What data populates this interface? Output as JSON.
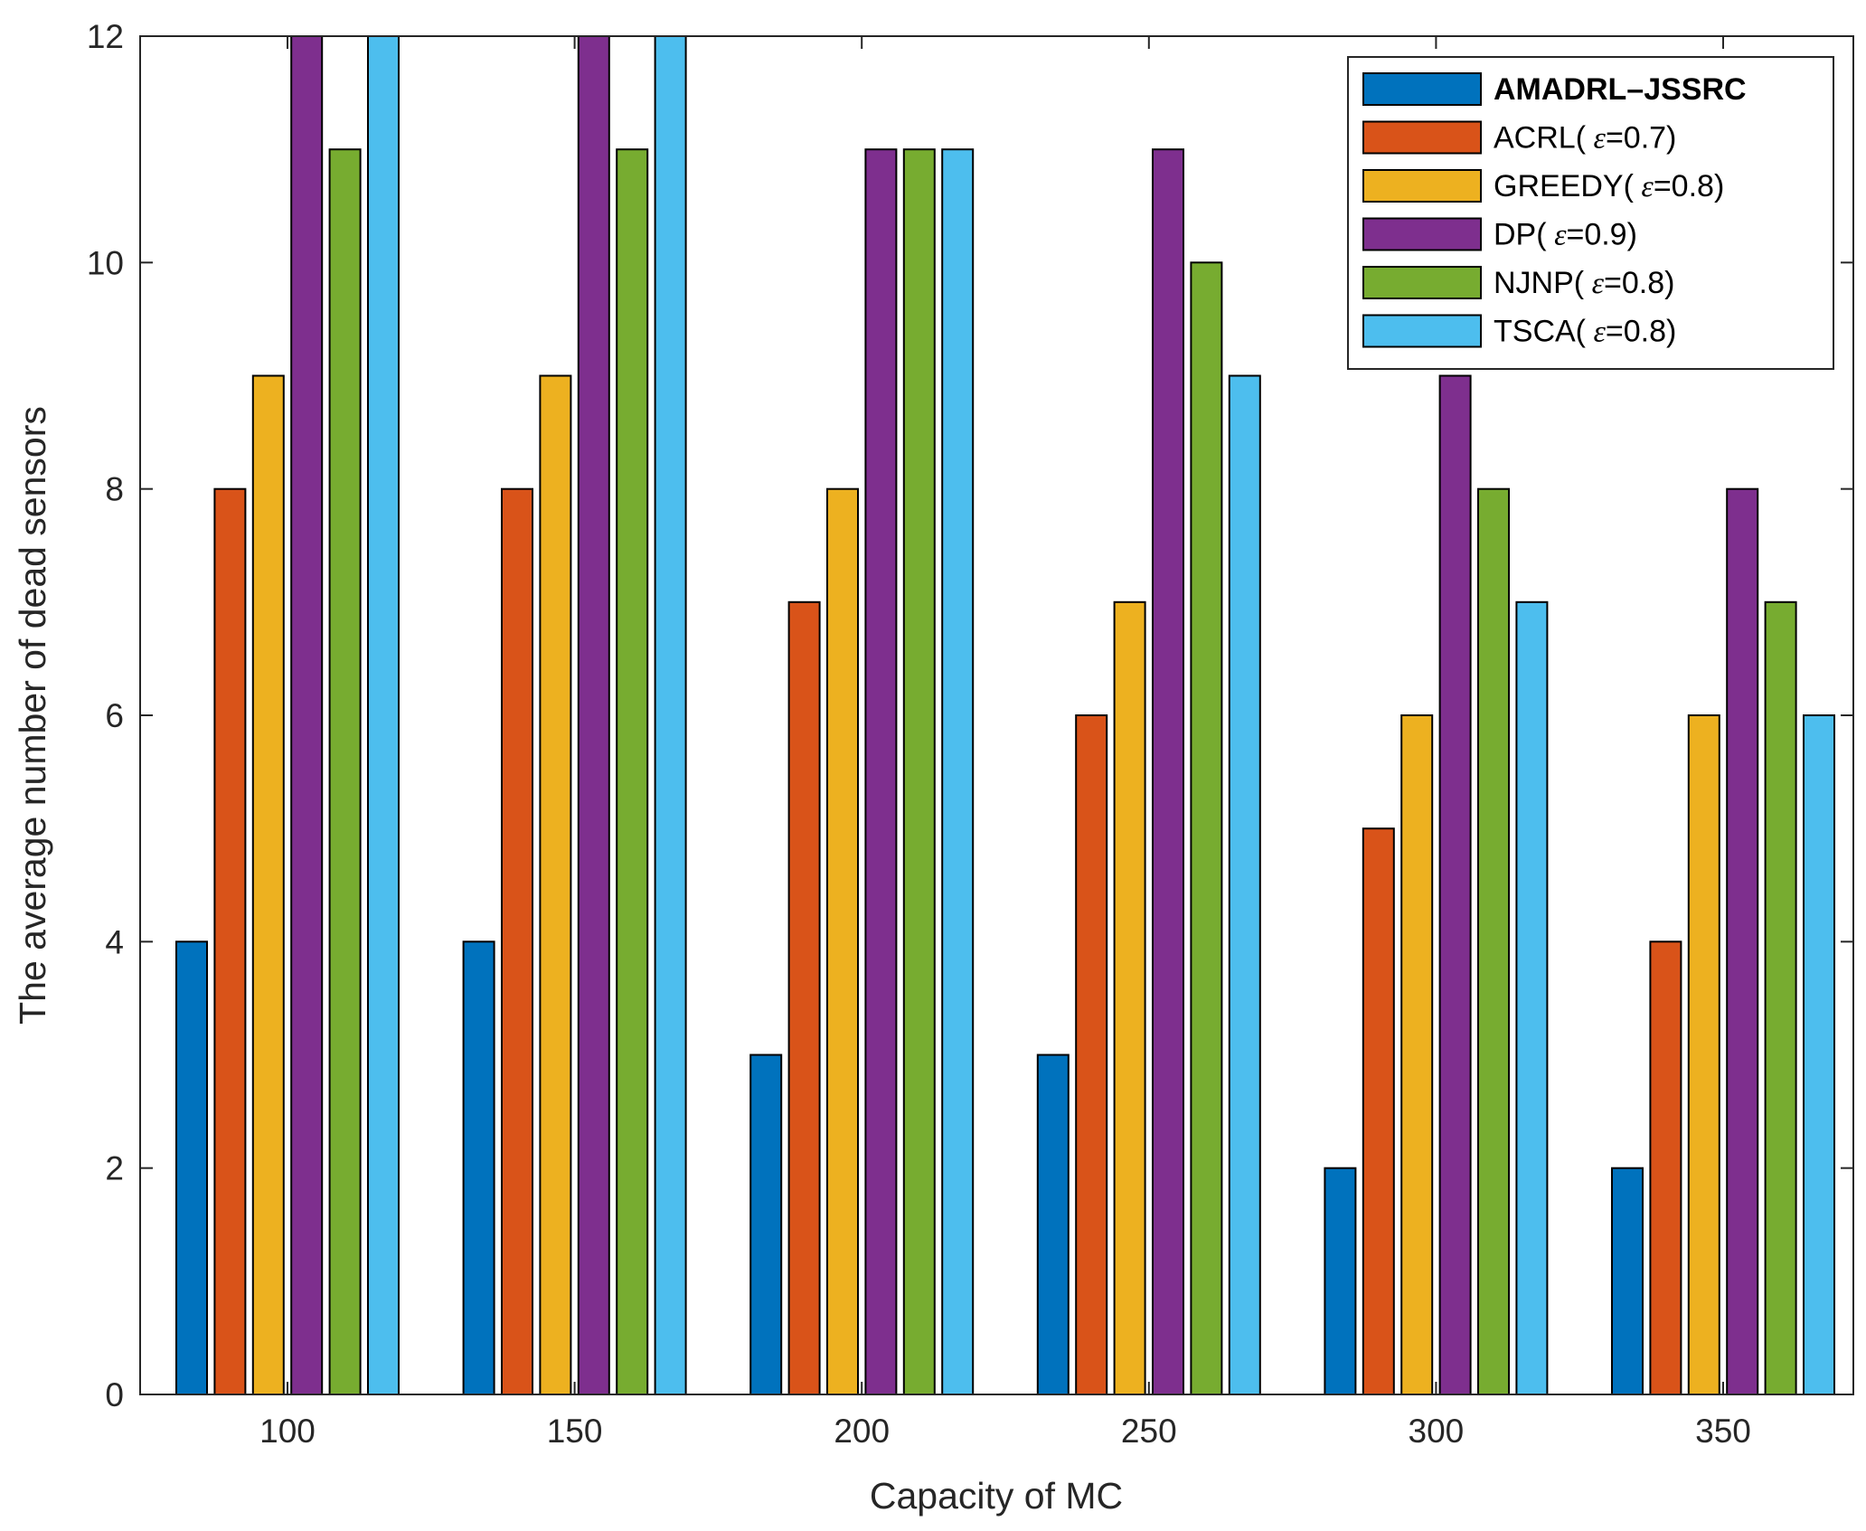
{
  "chart_data": {
    "type": "bar",
    "title": "",
    "xlabel": "Capacity of MC",
    "ylabel": "The average number of dead sensors",
    "categories": [
      "100",
      "150",
      "200",
      "250",
      "300",
      "350"
    ],
    "ylim": [
      0,
      12
    ],
    "yticks": [
      "0",
      "2",
      "4",
      "6",
      "8",
      "10",
      "12"
    ],
    "grid": false,
    "legend_position": "top-right",
    "series": [
      {
        "name": "AMADRL–JSSRC",
        "epsilon": "",
        "color": "#0072BD",
        "values": [
          4,
          4,
          3,
          3,
          2,
          2
        ]
      },
      {
        "name": "ACRL(",
        "epsilon": "=0.7)",
        "color": "#D95319",
        "values": [
          8,
          8,
          7,
          6,
          5,
          4
        ]
      },
      {
        "name": "GREEDY(",
        "epsilon": "=0.8)",
        "color": "#EDB120",
        "values": [
          9,
          9,
          8,
          7,
          6,
          6
        ]
      },
      {
        "name": "DP(",
        "epsilon": "=0.9)",
        "color": "#7E2F8E",
        "values": [
          12,
          12,
          11,
          11,
          9,
          8
        ]
      },
      {
        "name": "NJNP(",
        "epsilon": "=0.8)",
        "color": "#77AC30",
        "values": [
          11,
          11,
          11,
          10,
          8,
          7
        ]
      },
      {
        "name": "TSCA(",
        "epsilon": "=0.8)",
        "color": "#4DBEEE",
        "values": [
          12,
          12,
          11,
          9,
          7,
          6
        ]
      }
    ]
  }
}
